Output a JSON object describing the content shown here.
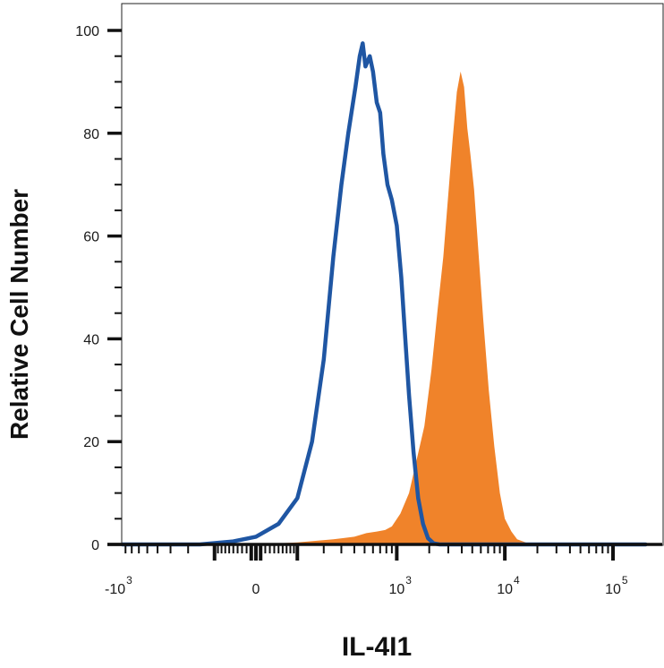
{
  "chart_data": {
    "type": "area",
    "xlabel": "IL-4I1",
    "ylabel": "Relative Cell Number",
    "x_scale": "biexponential",
    "ylim": [
      0,
      100
    ],
    "y_ticks": [
      {
        "value": 0,
        "label": "0"
      },
      {
        "value": 20,
        "label": "20"
      },
      {
        "value": 40,
        "label": "40"
      },
      {
        "value": 60,
        "label": "60"
      },
      {
        "value": 80,
        "label": "80"
      },
      {
        "value": 100,
        "label": "100"
      }
    ],
    "x_ticks": [
      {
        "value": -1000,
        "base": "-10",
        "exp": "3"
      },
      {
        "value": 0,
        "base": "0",
        "exp": ""
      },
      {
        "value": 1000,
        "base": "10",
        "exp": "3"
      },
      {
        "value": 10000,
        "base": "10",
        "exp": "4"
      },
      {
        "value": 100000,
        "base": "10",
        "exp": "5"
      }
    ],
    "series": [
      {
        "color": "#f0832a",
        "style": "filled",
        "points": [
          [
            -1500,
            0
          ],
          [
            0,
            0
          ],
          [
            100,
            0.4
          ],
          [
            250,
            1
          ],
          [
            400,
            1.5
          ],
          [
            520,
            2.2
          ],
          [
            650,
            2.5
          ],
          [
            780,
            2.8
          ],
          [
            900,
            3.5
          ],
          [
            1080,
            6
          ],
          [
            1300,
            10
          ],
          [
            1550,
            17
          ],
          [
            1800,
            23
          ],
          [
            2100,
            34
          ],
          [
            2400,
            46
          ],
          [
            2700,
            56
          ],
          [
            3000,
            68
          ],
          [
            3300,
            79
          ],
          [
            3600,
            88
          ],
          [
            3900,
            92
          ],
          [
            4200,
            89
          ],
          [
            4500,
            81
          ],
          [
            4800,
            76
          ],
          [
            5200,
            69
          ],
          [
            5700,
            57
          ],
          [
            6300,
            44
          ],
          [
            7100,
            30
          ],
          [
            8000,
            19
          ],
          [
            9000,
            10
          ],
          [
            10000,
            5
          ],
          [
            11500,
            2.5
          ],
          [
            13000,
            1
          ],
          [
            16000,
            0.3
          ],
          [
            200000,
            0
          ]
        ]
      },
      {
        "color": "#1f56a3",
        "style": "line",
        "points": [
          [
            -1500,
            0
          ],
          [
            -150,
            0
          ],
          [
            -50,
            0.6
          ],
          [
            0,
            1.5
          ],
          [
            50,
            4
          ],
          [
            100,
            9
          ],
          [
            150,
            20
          ],
          [
            200,
            36
          ],
          [
            250,
            56
          ],
          [
            300,
            70
          ],
          [
            350,
            80
          ],
          [
            410,
            89
          ],
          [
            450,
            95
          ],
          [
            480,
            97.5
          ],
          [
            510,
            93
          ],
          [
            560,
            95
          ],
          [
            600,
            92
          ],
          [
            650,
            86
          ],
          [
            700,
            84
          ],
          [
            750,
            76
          ],
          [
            820,
            70
          ],
          [
            900,
            67
          ],
          [
            1000,
            62
          ],
          [
            1100,
            52
          ],
          [
            1200,
            40
          ],
          [
            1300,
            29
          ],
          [
            1430,
            18
          ],
          [
            1580,
            9
          ],
          [
            1750,
            4
          ],
          [
            1950,
            1.2
          ],
          [
            2200,
            0.2
          ],
          [
            2500,
            0
          ],
          [
            200000,
            0
          ]
        ]
      }
    ]
  }
}
